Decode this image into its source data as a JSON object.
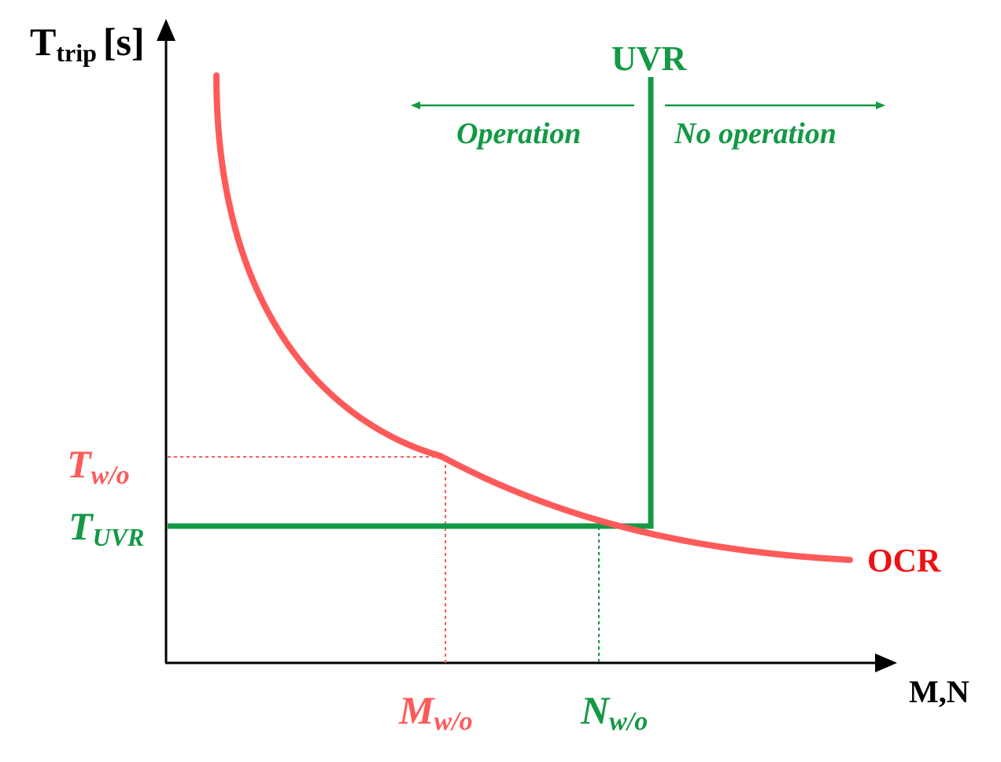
{
  "colors": {
    "ocr": "#ff5a5a",
    "ocr_label": "#ee1111",
    "uvr": "#139944",
    "axis": "#000000"
  },
  "axes": {
    "y_label_main": "T",
    "y_label_sub": "trip",
    "y_label_unit": "[s]",
    "x_label": "M,N"
  },
  "curves": {
    "ocr_label": "OCR",
    "uvr_label": "UVR"
  },
  "regions": {
    "left": "Operation",
    "right": "No operation"
  },
  "ticks": {
    "t_wo_main": "T",
    "t_wo_sub": "w/o",
    "t_uvr_main": "T",
    "t_uvr_sub": "UVR",
    "m_wo_main": "M",
    "m_wo_sub": "w/o",
    "n_wo_main": "N",
    "n_wo_sub": "w/o"
  }
}
